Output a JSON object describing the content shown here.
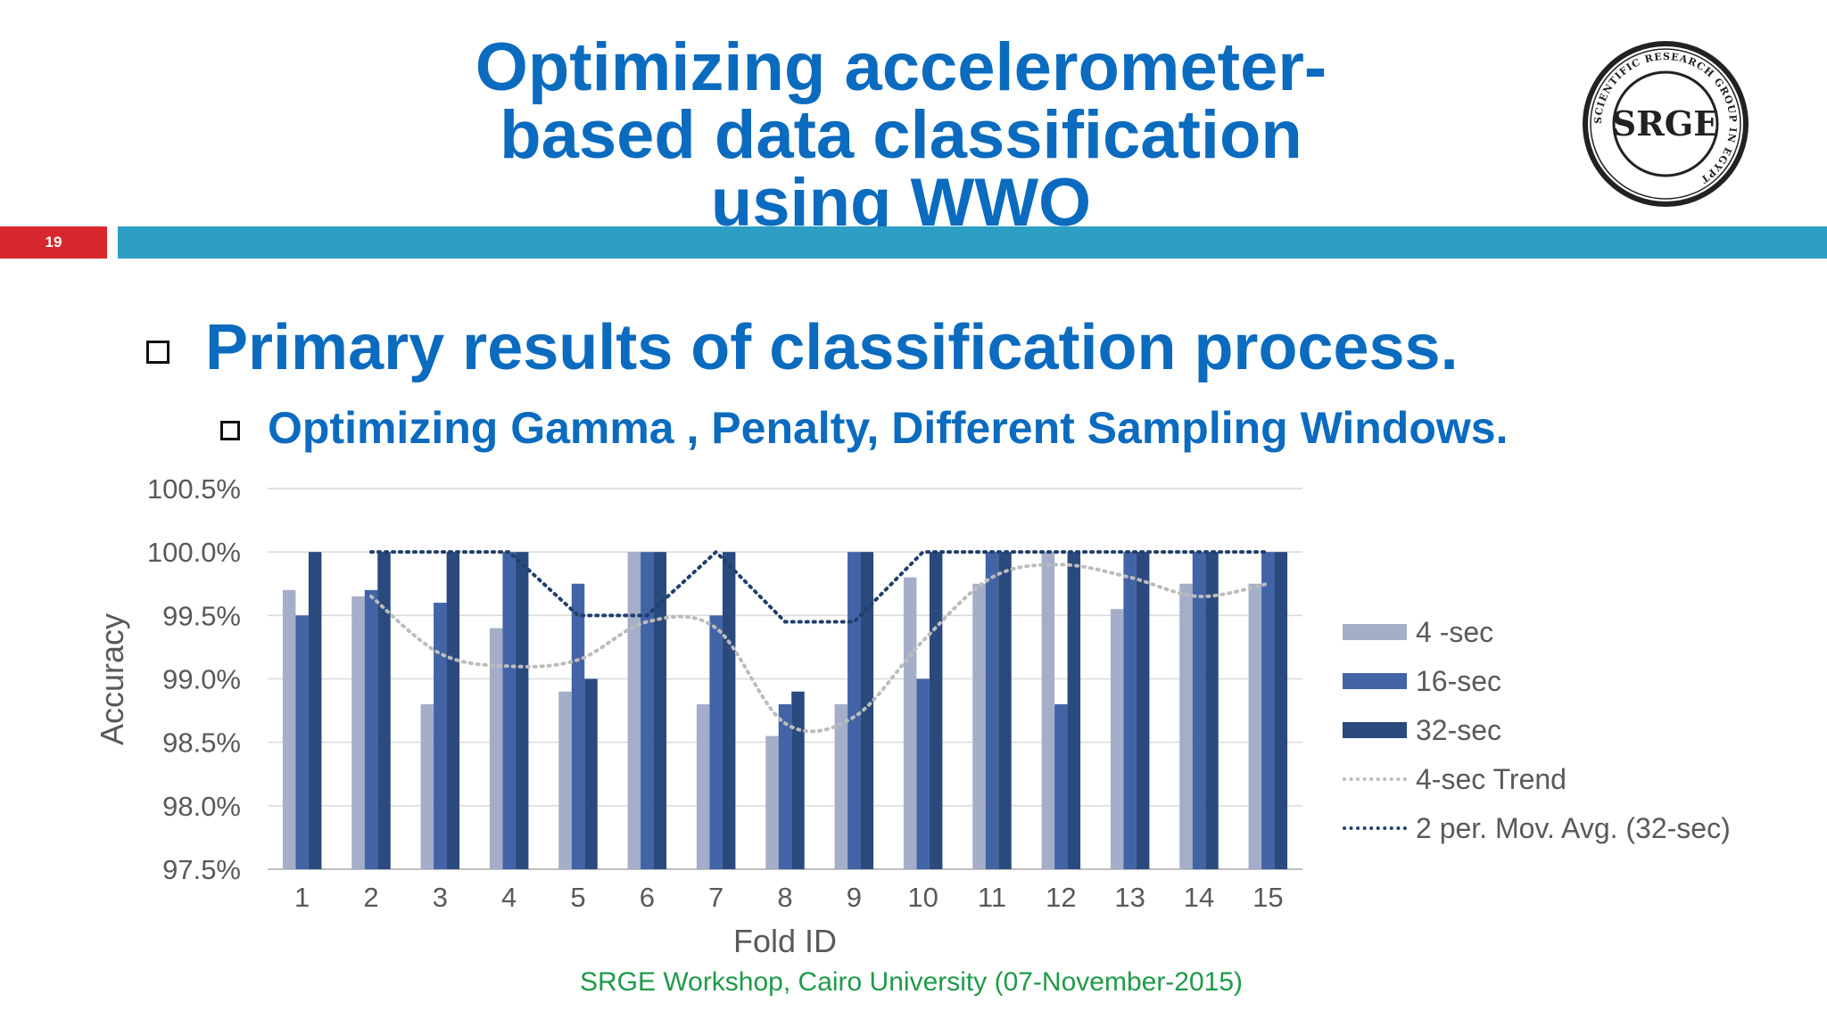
{
  "slide": {
    "title_lines": [
      "Optimizing accelerometer-",
      "based data classification",
      "using WWO"
    ],
    "slide_number": "19",
    "bullet_main": "Primary results of classification process.",
    "bullet_sub": "Optimizing Gamma , Penalty, Different Sampling Windows.",
    "footer": "SRGE Workshop, Cairo University (07-November-2015)",
    "logo": {
      "center_text": "SRGE",
      "ring_text": "SCIENTIFIC RESEARCH GROUP IN EGYPT"
    },
    "colors": {
      "title": "#0b6bbf",
      "slide_number_bg": "#d7262c",
      "band": "#2d9fc4",
      "footer": "#1e9a4a"
    }
  },
  "chart_data": {
    "type": "bar",
    "xlabel": "Fold ID",
    "ylabel": "Accuracy",
    "categories": [
      "1",
      "2",
      "3",
      "4",
      "5",
      "6",
      "7",
      "8",
      "9",
      "10",
      "11",
      "12",
      "13",
      "14",
      "15"
    ],
    "ylim": [
      97.5,
      100.5
    ],
    "yticks": [
      "97.5%",
      "98.0%",
      "98.5%",
      "99.0%",
      "99.5%",
      "100.0%",
      "100.5%"
    ],
    "grid": true,
    "legend_position": "right",
    "series": [
      {
        "name": "4 -sec",
        "color": "#a5aec8",
        "values": [
          99.7,
          99.65,
          98.8,
          99.4,
          98.9,
          100.0,
          98.8,
          98.55,
          98.8,
          99.8,
          99.75,
          100.0,
          99.55,
          99.75,
          99.75
        ]
      },
      {
        "name": "16-sec",
        "color": "#4264a6",
        "values": [
          99.5,
          99.7,
          99.6,
          100.0,
          99.75,
          100.0,
          99.5,
          98.8,
          100.0,
          99.0,
          100.0,
          98.8,
          100.0,
          100.0,
          100.0
        ]
      },
      {
        "name": "32-sec",
        "color": "#2a4a7e",
        "values": [
          100.0,
          100.0,
          100.0,
          100.0,
          99.0,
          100.0,
          100.0,
          98.9,
          100.0,
          100.0,
          100.0,
          100.0,
          100.0,
          100.0,
          100.0
        ]
      }
    ],
    "trend_lines": [
      {
        "name": "4-sec Trend",
        "color": "#bcbcbc",
        "values": [
          null,
          99.65,
          99.2,
          99.1,
          99.15,
          99.45,
          99.4,
          98.65,
          98.7,
          99.3,
          99.8,
          99.9,
          99.8,
          99.65,
          99.75
        ]
      },
      {
        "name": "2 per. Mov. Avg. (32-sec)",
        "color": "#1f3f6e",
        "values": [
          null,
          100.0,
          100.0,
          100.0,
          99.5,
          99.5,
          100.0,
          99.45,
          99.45,
          100.0,
          100.0,
          100.0,
          100.0,
          100.0,
          100.0
        ]
      }
    ]
  }
}
